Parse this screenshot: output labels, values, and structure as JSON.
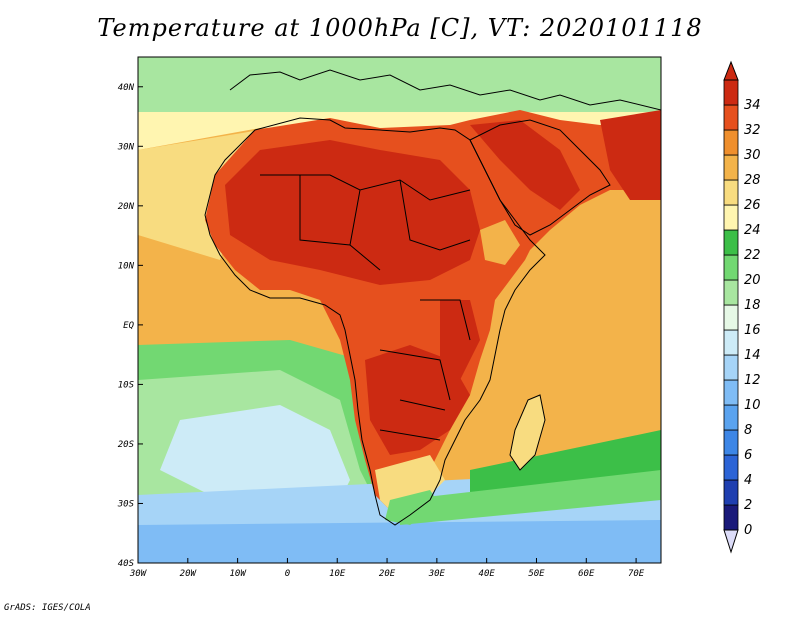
{
  "title": "Temperature at 1000hPa [C], VT: 2020101118",
  "credit": "GrADS: IGES/COLA",
  "map": {
    "lon_range": [
      -30,
      75
    ],
    "lat_range": [
      -40,
      45
    ],
    "x_ticks": [
      {
        "lon": -30,
        "label": "30W"
      },
      {
        "lon": -20,
        "label": "20W"
      },
      {
        "lon": -10,
        "label": "10W"
      },
      {
        "lon": 0,
        "label": "0"
      },
      {
        "lon": 10,
        "label": "10E"
      },
      {
        "lon": 20,
        "label": "20E"
      },
      {
        "lon": 30,
        "label": "30E"
      },
      {
        "lon": 40,
        "label": "40E"
      },
      {
        "lon": 50,
        "label": "50E"
      },
      {
        "lon": 60,
        "label": "60E"
      },
      {
        "lon": 70,
        "label": "70E"
      }
    ],
    "y_ticks": [
      {
        "lat": 40,
        "label": "40N"
      },
      {
        "lat": 30,
        "label": "30N"
      },
      {
        "lat": 20,
        "label": "20N"
      },
      {
        "lat": 10,
        "label": "10N"
      },
      {
        "lat": 0,
        "label": "EQ"
      },
      {
        "lat": -10,
        "label": "10S"
      },
      {
        "lat": -20,
        "label": "20S"
      },
      {
        "lat": -30,
        "label": "30S"
      },
      {
        "lat": -40,
        "label": "40S"
      }
    ]
  },
  "colorbar": {
    "levels": [
      "0",
      "2",
      "4",
      "6",
      "8",
      "10",
      "12",
      "14",
      "16",
      "18",
      "20",
      "22",
      "24",
      "26",
      "28",
      "30",
      "32",
      "34"
    ],
    "colors": [
      "#1a1a7a",
      "#1f3fb0",
      "#2c64d6",
      "#3d86e6",
      "#5aa3ef",
      "#7fbcf5",
      "#a6d4f7",
      "#cdebf7",
      "#e6f8e6",
      "#a8e6a0",
      "#72d872",
      "#3cbf48",
      "#fff5b0",
      "#f8dc80",
      "#f3b34a",
      "#ef8f2d",
      "#e6501e",
      "#cc2a12"
    ]
  },
  "field": {
    "levels": [
      "10",
      "12",
      "14",
      "16",
      "18",
      "20",
      "22",
      "24",
      "26",
      "28",
      "30",
      "32",
      "34"
    ],
    "ocean_color": "#f3b34a",
    "land_hot_color": "#e6501e",
    "core_hot_color": "#cc2a12"
  }
}
